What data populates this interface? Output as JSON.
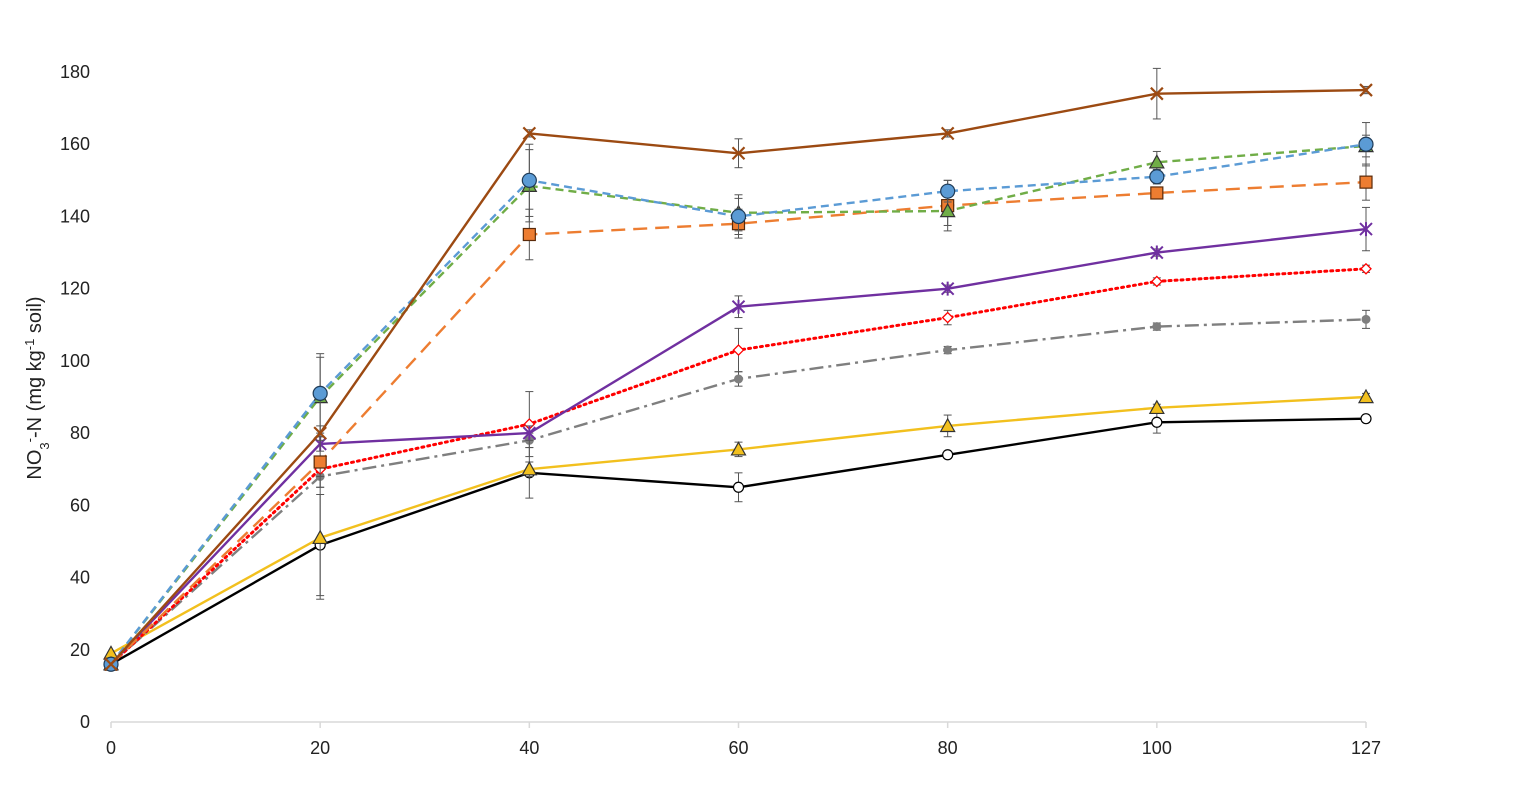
{
  "chart_data": {
    "type": "line",
    "title": "",
    "xlabel": "",
    "ylabel": {
      "prefix": "NO",
      "sub": "3",
      "sup": "-",
      "middle": "-N (mg kg",
      "sup2": "-1",
      "suffix": " soil)"
    },
    "x": [
      "0",
      "20",
      "40",
      "60",
      "80",
      "100",
      "127"
    ],
    "yticks": [
      "0",
      "20",
      "40",
      "60",
      "80",
      "100",
      "120",
      "140",
      "160",
      "180"
    ],
    "ylim": [
      0,
      180
    ],
    "grid": false,
    "legend": "none",
    "series": [
      {
        "color": "#000000",
        "dash": "solid",
        "marker": "circle-open",
        "markerFill": "#ffffff",
        "values": [
          16,
          49,
          69,
          65,
          74,
          83,
          84
        ],
        "err": [
          0,
          14,
          7,
          4,
          1,
          3,
          1
        ]
      },
      {
        "color": "#f2c01e",
        "dash": "solid",
        "marker": "triangle",
        "markerFill": "#f2c01e",
        "values": [
          19,
          51,
          70,
          75.5,
          82,
          87,
          90
        ],
        "err": [
          0,
          17,
          2,
          2,
          3,
          1,
          1
        ]
      },
      {
        "color": "#7f7f7f",
        "dash": "dashdot",
        "marker": "dot",
        "markerFill": "#7f7f7f",
        "values": [
          16,
          68,
          78,
          95,
          103,
          109.5,
          111.5
        ],
        "err": [
          0,
          3,
          2,
          2,
          1,
          1,
          2.5
        ]
      },
      {
        "color": "#ff0000",
        "dash": "dotted",
        "marker": "diamond-open",
        "markerFill": "#ffffff",
        "values": [
          16,
          70,
          82.5,
          103,
          112,
          122,
          125.5
        ],
        "err": [
          0,
          2,
          9,
          6,
          2,
          1,
          1
        ]
      },
      {
        "color": "#7030a0",
        "dash": "solid",
        "marker": "star",
        "markerFill": "#7030a0",
        "values": [
          16,
          77,
          80,
          115,
          120,
          130,
          136.5
        ],
        "err": [
          0,
          2,
          2,
          3,
          1,
          1,
          6
        ]
      },
      {
        "color": "#ed7d31",
        "dash": "longdash",
        "marker": "square",
        "markerFill": "#ed7d31",
        "values": [
          16,
          72,
          135,
          138,
          143,
          146.5,
          149.5
        ],
        "err": [
          0,
          7,
          7,
          4,
          7,
          1,
          5
        ]
      },
      {
        "color": "#70ad47",
        "dash": "dashed",
        "marker": "triangle",
        "markerFill": "#70ad47",
        "values": [
          16,
          90,
          148.5,
          141,
          141.5,
          155,
          159.5
        ],
        "err": [
          0,
          11,
          10,
          5,
          4,
          3,
          3
        ]
      },
      {
        "color": "#5b9bd5",
        "dash": "dashed",
        "marker": "circle",
        "markerFill": "#5b9bd5",
        "values": [
          16,
          91,
          150,
          140,
          147,
          151,
          160
        ],
        "err": [
          0,
          11,
          10,
          5,
          3,
          2,
          6
        ]
      },
      {
        "color": "#9c4a12",
        "dash": "solid",
        "marker": "x",
        "markerFill": "#9c4a12",
        "values": [
          16,
          80,
          163,
          157.5,
          163,
          174,
          175
        ],
        "err": [
          0,
          2,
          1,
          4,
          1,
          7,
          1
        ]
      }
    ]
  }
}
